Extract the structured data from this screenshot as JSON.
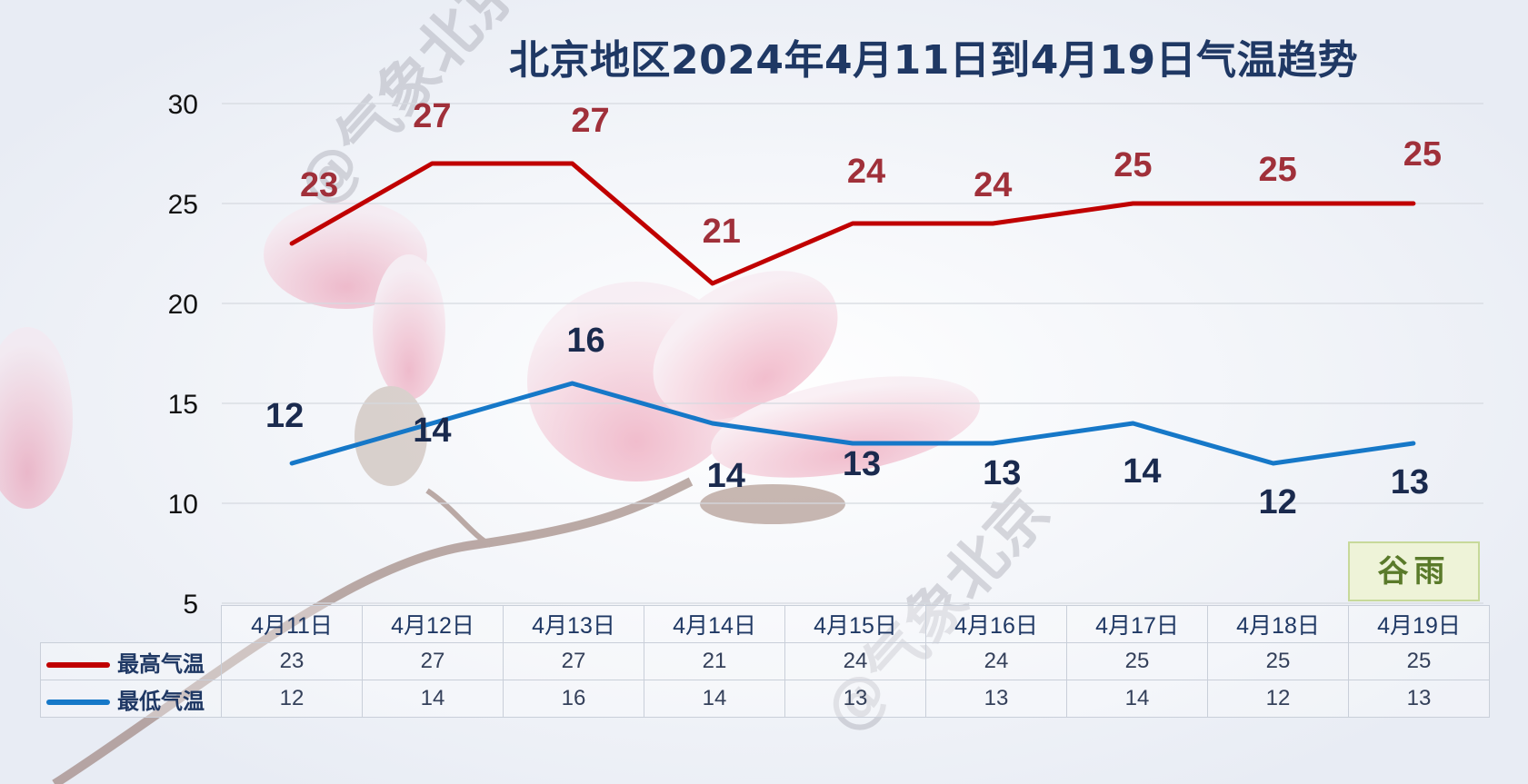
{
  "title": "北京地区2024年4月11日到4月19日气温趋势",
  "watermark": "@气象北京",
  "badge": "谷雨",
  "chart_data": {
    "type": "line",
    "title": "北京地区2024年4月11日到4月19日气温趋势",
    "categories": [
      "4月11日",
      "4月12日",
      "4月13日",
      "4月14日",
      "4月15日",
      "4月16日",
      "4月17日",
      "4月18日",
      "4月19日"
    ],
    "series": [
      {
        "name": "最高气温",
        "values": [
          23,
          27,
          27,
          21,
          24,
          24,
          25,
          25,
          25
        ],
        "color": "#c00000",
        "label_color": "#a0303a"
      },
      {
        "name": "最低气温",
        "values": [
          12,
          14,
          16,
          14,
          13,
          13,
          14,
          12,
          13
        ],
        "color": "#1678c8",
        "label_color": "#1a2a4e"
      }
    ],
    "yticks": [
      "30",
      "25",
      "20",
      "15",
      "10",
      "5"
    ],
    "ylim": [
      5,
      30
    ],
    "grid": true,
    "legend": "data table below chart"
  }
}
